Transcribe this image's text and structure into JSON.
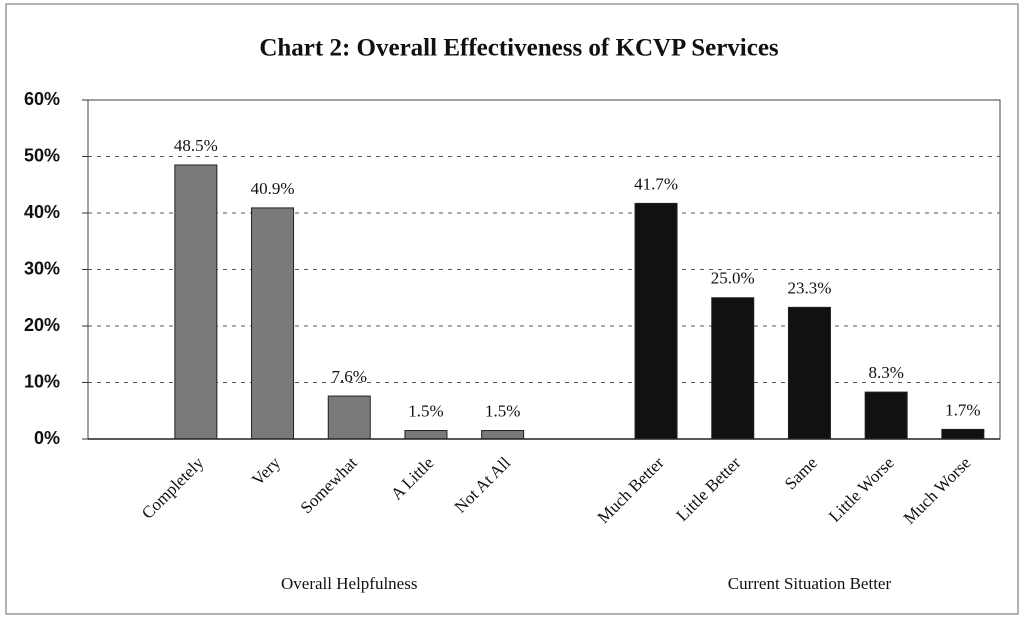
{
  "chart_data": {
    "type": "bar",
    "title": "Chart 2: Overall Effectiveness of KCVP Services",
    "groups": [
      {
        "name": "Overall Helpfulness",
        "color": "#7a7a7a",
        "categories": [
          "Completely",
          "Very",
          "Somewhat",
          "A Little",
          "Not At All"
        ],
        "values": [
          48.5,
          40.9,
          7.6,
          1.5,
          1.5
        ],
        "value_labels": [
          "48.5%",
          "40.9%",
          "7.6%",
          "1.5%",
          "1.5%"
        ]
      },
      {
        "name": "Current Situation Better",
        "color": "#111111",
        "categories": [
          "Much Better",
          "Little Better",
          "Same",
          "Little Worse",
          "Much Worse"
        ],
        "values": [
          41.7,
          25.0,
          23.3,
          8.3,
          1.7
        ],
        "value_labels": [
          "41.7%",
          "25.0%",
          "23.3%",
          "8.3%",
          "1.7%"
        ]
      }
    ],
    "ylim": [
      0,
      60
    ],
    "yticks": [
      {
        "value": 0,
        "label": "0%"
      },
      {
        "value": 10,
        "label": "10%"
      },
      {
        "value": 20,
        "label": "20%"
      },
      {
        "value": 30,
        "label": "30%"
      },
      {
        "value": 40,
        "label": "40%"
      },
      {
        "value": 50,
        "label": "50%"
      },
      {
        "value": 60,
        "label": "60%"
      }
    ],
    "grid": true
  }
}
